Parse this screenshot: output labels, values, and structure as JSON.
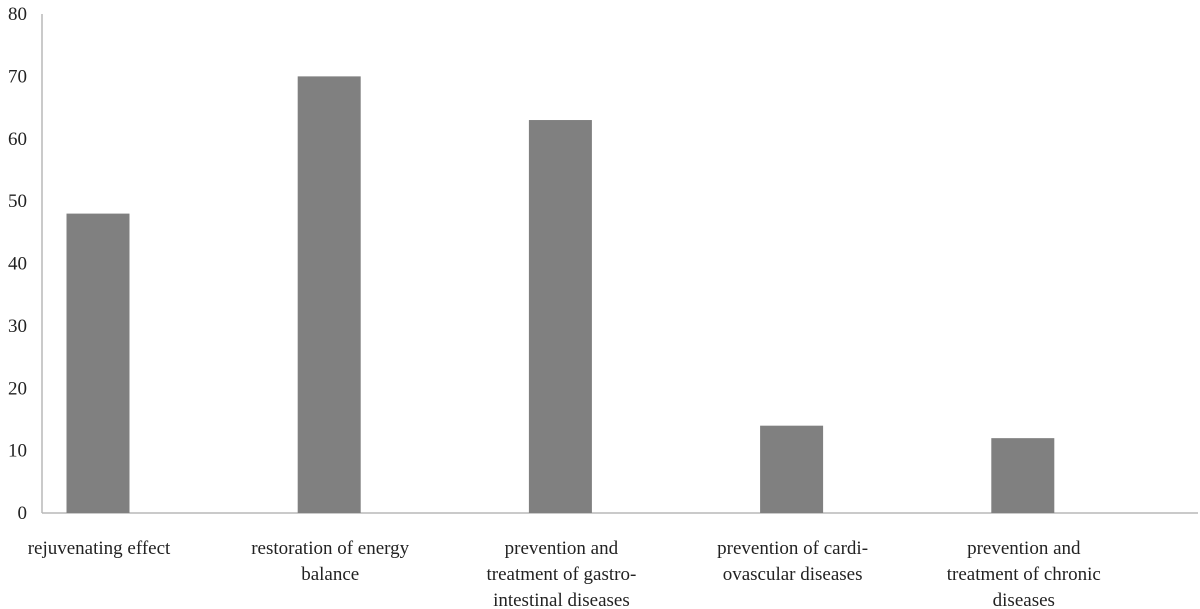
{
  "chart_data": {
    "type": "bar",
    "title": "",
    "xlabel": "",
    "ylabel": "",
    "ylim": [
      0,
      80
    ],
    "yticks": [
      0,
      10,
      20,
      30,
      40,
      50,
      60,
      70,
      80
    ],
    "categories": [
      [
        "rejuvenating effect"
      ],
      [
        "restoration of energy",
        "balance"
      ],
      [
        "prevention and",
        "treatment of gastro-",
        "intestinal diseases"
      ],
      [
        "prevention of cardi-",
        "ovascular diseases"
      ],
      [
        "prevention and",
        "treatment of chronic",
        "diseases"
      ]
    ],
    "series": [
      {
        "name": "",
        "values": [
          48,
          70,
          63,
          14,
          12
        ]
      }
    ],
    "grid": false,
    "legend": "none",
    "colors": {
      "bar": "#808080",
      "axis": "#b8b8b8",
      "text": "#222222"
    }
  }
}
